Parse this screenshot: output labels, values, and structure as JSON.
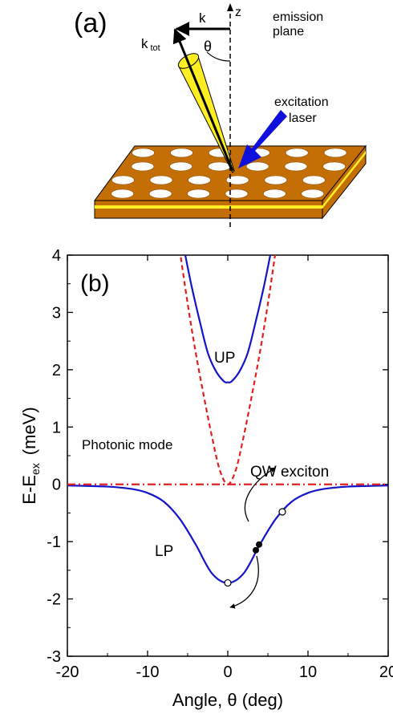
{
  "panel_a": {
    "label": "(a)",
    "k_label": "k",
    "ktot_main": "k",
    "ktot_sub": "tot",
    "theta_label": "θ",
    "z_label": "z",
    "emission_plane": [
      "emission",
      "plane"
    ],
    "excitation_laser": [
      "excitation",
      "laser"
    ],
    "colors": {
      "slab": "#c46e06",
      "cone": "#ffee22",
      "layer": "#ffee22",
      "laser": "#1010dd"
    }
  },
  "chart_data": {
    "type": "line",
    "panel_label": "(b)",
    "xlabel_main": "Angle,  θ (deg)",
    "ylabel_main": "E-E",
    "ylabel_sub": "ex",
    "ylabel_unit": "(meV)",
    "xlim": [
      -20,
      20
    ],
    "ylim": [
      -3,
      4
    ],
    "xticks": [
      -20,
      -10,
      0,
      10,
      20
    ],
    "yticks": [
      -3,
      -2,
      -1,
      0,
      1,
      2,
      3,
      4
    ],
    "series": [
      {
        "name": "UP",
        "color": "#1414c8",
        "style": "solid",
        "x": [
          -5.3,
          -4.5,
          -3.5,
          -2.5,
          -1.5,
          -0.5,
          0,
          0.5,
          1.5,
          2.5,
          3.5,
          4.5,
          5.3
        ],
        "y": [
          4.0,
          3.45,
          2.85,
          2.3,
          1.98,
          1.8,
          1.78,
          1.8,
          1.98,
          2.3,
          2.85,
          3.45,
          4.0
        ]
      },
      {
        "name": "LP",
        "color": "#1414c8",
        "style": "solid",
        "x": [
          -20,
          -15,
          -12,
          -10,
          -8,
          -6,
          -4,
          -2,
          0,
          2,
          4,
          6,
          8,
          10,
          12,
          15,
          20
        ],
        "y": [
          -0.02,
          -0.04,
          -0.08,
          -0.15,
          -0.3,
          -0.6,
          -1.05,
          -1.55,
          -1.72,
          -1.55,
          -1.05,
          -0.6,
          -0.3,
          -0.15,
          -0.08,
          -0.04,
          -0.02
        ]
      },
      {
        "name": "Photonic mode",
        "color": "#e02020",
        "style": "dashed",
        "x": [
          -6,
          -5,
          -4,
          -3,
          -2,
          -1,
          0,
          1,
          2,
          3,
          4,
          5,
          6
        ],
        "y": [
          4.1,
          3.15,
          2.3,
          1.55,
          0.85,
          0.25,
          0.0,
          0.25,
          0.85,
          1.55,
          2.3,
          3.15,
          4.1
        ]
      },
      {
        "name": "QW exciton",
        "color": "#e02020",
        "style": "dashdot",
        "x": [
          -20,
          20
        ],
        "y": [
          0,
          0
        ]
      }
    ],
    "annotations": {
      "up_label": "UP",
      "lp_label": "LP",
      "photonic_label": "Photonic mode",
      "qw_label": "QW exciton",
      "open_points": [
        {
          "x": 0,
          "y": -1.72
        },
        {
          "x": 6.8,
          "y": -0.48
        }
      ],
      "filled_points": [
        {
          "x": 3.9,
          "y": -1.05
        },
        {
          "x": 3.5,
          "y": -1.15
        }
      ]
    }
  }
}
